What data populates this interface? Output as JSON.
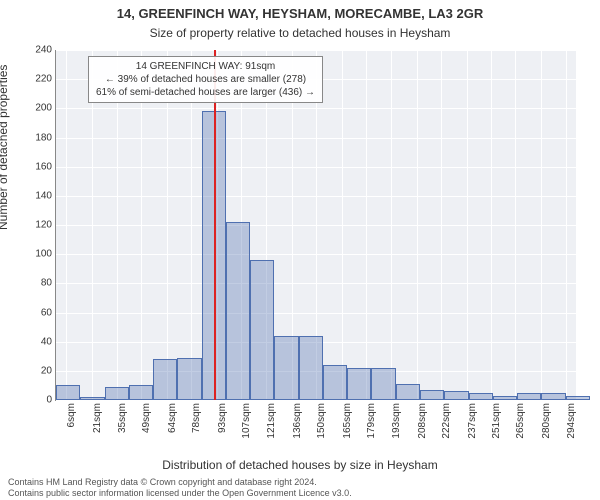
{
  "chart": {
    "type": "histogram",
    "title1": "14, GREENFINCH WAY, HEYSHAM, MORECAMBE, LA3 2GR",
    "title1_fontsize": 13,
    "title2": "Size of property relative to detached houses in Heysham",
    "title2_fontsize": 12,
    "ylabel": "Number of detached properties",
    "ylabel_fontsize": 12,
    "xlabel": "Distribution of detached houses by size in Heysham",
    "xlabel_fontsize": 12,
    "attribution_line1": "Contains HM Land Registry data © Crown copyright and database right 2024.",
    "attribution_line2": "Contains public sector information licensed under the Open Government Licence v3.0.",
    "attribution_fontsize": 9,
    "background_color": "#ffffff",
    "plot_bg_color": "#eef0f4",
    "grid_color": "#ffffff",
    "bar_fill": "rgba(79,112,176,0.35)",
    "bar_border": "#4f70b0",
    "marker_color": "#d22",
    "xlim": [
      0,
      300
    ],
    "ylim": [
      0,
      240
    ],
    "ytick_step": 20,
    "yticks": [
      0,
      20,
      40,
      60,
      80,
      100,
      120,
      140,
      160,
      180,
      200,
      220,
      240
    ],
    "xticks": [
      6,
      21,
      35,
      49,
      64,
      78,
      93,
      107,
      121,
      136,
      150,
      165,
      179,
      193,
      208,
      222,
      237,
      251,
      265,
      280,
      294
    ],
    "xtick_labels": [
      "6sqm",
      "21sqm",
      "35sqm",
      "49sqm",
      "64sqm",
      "78sqm",
      "93sqm",
      "107sqm",
      "121sqm",
      "136sqm",
      "150sqm",
      "165sqm",
      "179sqm",
      "193sqm",
      "208sqm",
      "222sqm",
      "237sqm",
      "251sqm",
      "265sqm",
      "280sqm",
      "294sqm"
    ],
    "xtick_fontsize": 10,
    "ytick_fontsize": 10,
    "bin_width": 14,
    "bars": [
      {
        "x": 0,
        "h": 10
      },
      {
        "x": 14,
        "h": 2
      },
      {
        "x": 28,
        "h": 9
      },
      {
        "x": 42,
        "h": 10
      },
      {
        "x": 56,
        "h": 28
      },
      {
        "x": 70,
        "h": 29
      },
      {
        "x": 84,
        "h": 198
      },
      {
        "x": 98,
        "h": 122
      },
      {
        "x": 112,
        "h": 96
      },
      {
        "x": 126,
        "h": 44
      },
      {
        "x": 140,
        "h": 44
      },
      {
        "x": 154,
        "h": 24
      },
      {
        "x": 168,
        "h": 22
      },
      {
        "x": 182,
        "h": 22
      },
      {
        "x": 196,
        "h": 11
      },
      {
        "x": 210,
        "h": 7
      },
      {
        "x": 224,
        "h": 6
      },
      {
        "x": 238,
        "h": 5
      },
      {
        "x": 252,
        "h": 3
      },
      {
        "x": 266,
        "h": 5
      },
      {
        "x": 280,
        "h": 5
      },
      {
        "x": 294,
        "h": 3
      }
    ],
    "marker_at_x": 91,
    "annotation": {
      "line1": "14 GREENFINCH WAY: 91sqm",
      "line2": "← 39% of detached houses are smaller (278)",
      "line3": "61% of semi-detached houses are larger (436) →",
      "fontsize": 10
    }
  }
}
